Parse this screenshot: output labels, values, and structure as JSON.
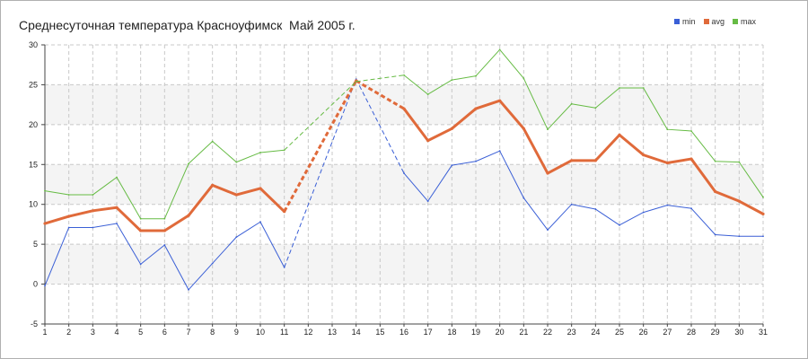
{
  "chart_data": {
    "type": "line",
    "title": "Среднесуточная температура Красноуфимск  Май 2005 г.",
    "xlabel": "",
    "ylabel": "",
    "x": [
      1,
      2,
      3,
      4,
      5,
      6,
      7,
      8,
      9,
      10,
      11,
      12,
      13,
      14,
      15,
      16,
      17,
      18,
      19,
      20,
      21,
      22,
      23,
      24,
      25,
      26,
      27,
      28,
      29,
      30,
      31
    ],
    "ylim": [
      -5,
      30
    ],
    "yticks": [
      -5,
      0,
      5,
      10,
      15,
      20,
      25,
      30
    ],
    "grid": true,
    "legend_position": "top-right",
    "series": [
      {
        "name": "min",
        "color": "#3a5fd6",
        "values": [
          -0.2,
          7.1,
          7.1,
          7.6,
          2.5,
          4.9,
          -0.7,
          2.6,
          5.9,
          7.8,
          2.1,
          null,
          null,
          25.7,
          null,
          13.9,
          10.4,
          14.9,
          15.4,
          16.7,
          10.8,
          6.8,
          10.0,
          9.4,
          7.4,
          9.0,
          9.9,
          9.5,
          6.2,
          6.0,
          6.0
        ]
      },
      {
        "name": "avg",
        "color": "#e06a3a",
        "values": [
          7.6,
          8.5,
          9.2,
          9.6,
          6.7,
          6.7,
          8.6,
          12.4,
          11.2,
          12.0,
          9.1,
          null,
          null,
          25.5,
          null,
          22.0,
          18.0,
          19.5,
          22.0,
          23.0,
          19.5,
          13.9,
          15.5,
          15.5,
          18.7,
          16.2,
          15.2,
          15.7,
          11.6,
          10.4,
          8.8
        ]
      },
      {
        "name": "max",
        "color": "#66bb44",
        "values": [
          11.7,
          11.2,
          11.2,
          13.4,
          8.2,
          8.2,
          15.1,
          17.9,
          15.3,
          16.5,
          16.8,
          null,
          null,
          25.4,
          null,
          26.2,
          23.8,
          25.6,
          26.1,
          29.4,
          25.8,
          19.4,
          22.6,
          22.1,
          24.6,
          24.6,
          19.4,
          19.2,
          15.4,
          15.3,
          10.9
        ]
      }
    ]
  }
}
